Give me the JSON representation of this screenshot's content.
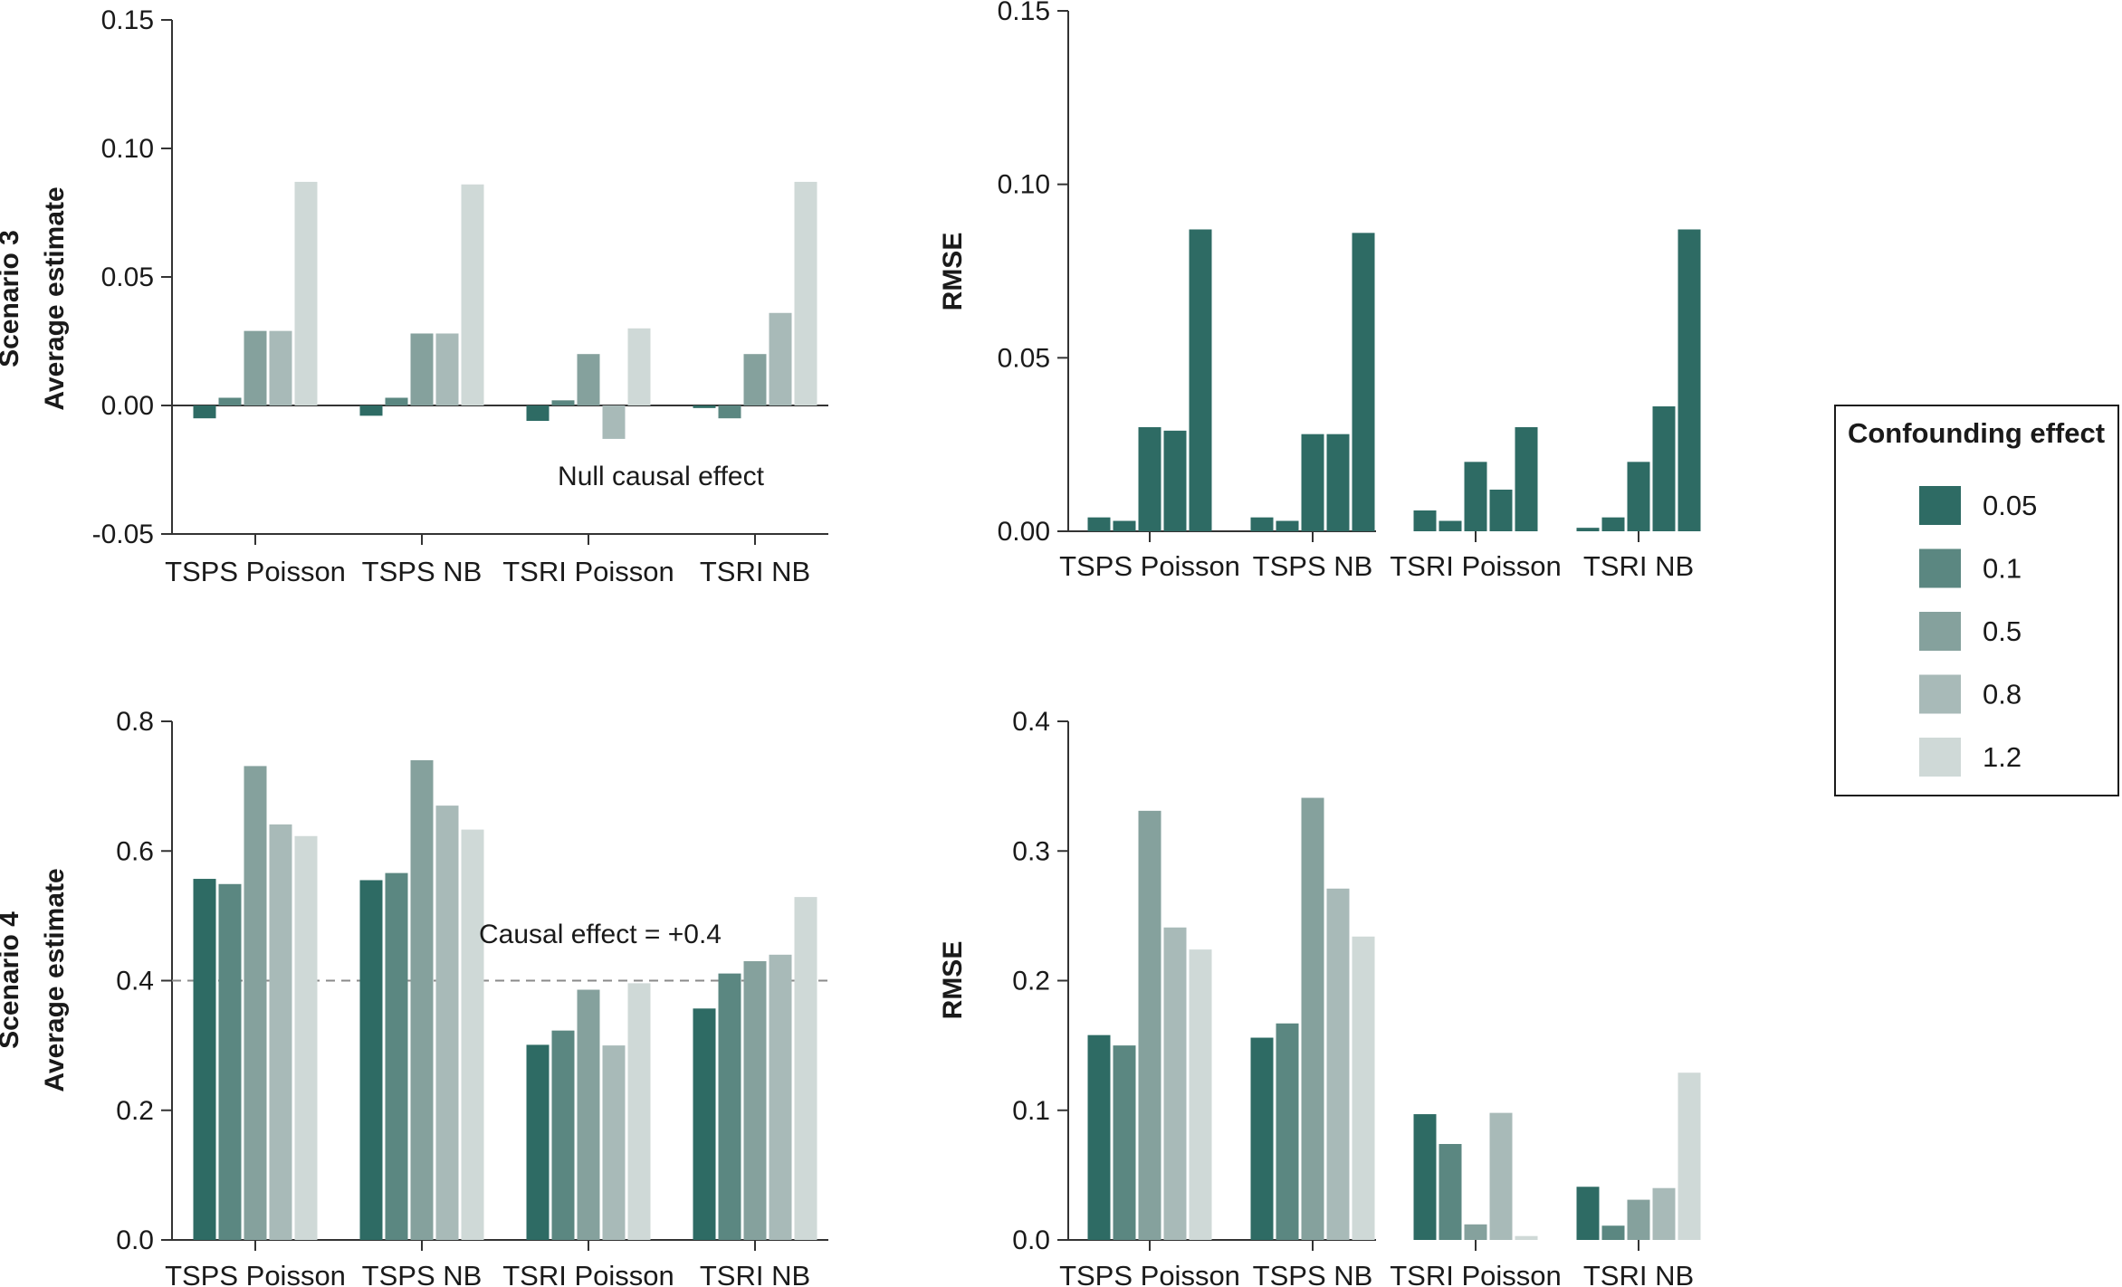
{
  "colors": {
    "0.05": "#2e6b64",
    "0.1": "#5b8781",
    "0.5": "#85a19d",
    "0.8": "#a8bab8",
    "1.2": "#cfd9d7",
    "rmse_bar": "#2e6b64",
    "axis": "#333333",
    "reference": "#8a8a8a"
  },
  "legend": {
    "title": "Confounding effect",
    "entries": [
      "0.05",
      "0.1",
      "0.5",
      "0.8",
      "1.2"
    ]
  },
  "row_titles": [
    "Scenario 3",
    "Scenario 4"
  ],
  "chart_data": [
    {
      "id": "s3-avg",
      "type": "bar",
      "ylabel": "Average estimate",
      "ylim": [
        -0.05,
        0.15
      ],
      "yticks": [
        -0.05,
        0.0,
        0.05,
        0.1,
        0.15
      ],
      "tick_labels": [
        "-0.05",
        "0.00",
        "0.05",
        "0.10",
        "0.15"
      ],
      "categories": [
        "TSPS Poisson",
        "TSPS NB",
        "TSRI Poisson",
        "TSRI NB"
      ],
      "series": [
        {
          "name": "0.05",
          "values": [
            -0.005,
            -0.004,
            -0.006,
            -0.001
          ]
        },
        {
          "name": "0.1",
          "values": [
            0.003,
            0.003,
            0.002,
            -0.005
          ]
        },
        {
          "name": "0.5",
          "values": [
            0.029,
            0.028,
            0.02,
            0.02
          ]
        },
        {
          "name": "0.8",
          "values": [
            0.029,
            0.028,
            -0.013,
            0.036
          ]
        },
        {
          "name": "1.2",
          "values": [
            0.087,
            0.086,
            0.03,
            0.087
          ]
        }
      ],
      "reference_line": {
        "y": 0.0,
        "style": "solid"
      },
      "annotation": "Null causal effect"
    },
    {
      "id": "s3-rmse",
      "type": "bar",
      "ylabel": "RMSE",
      "ylim": [
        0.0,
        0.15
      ],
      "yticks": [
        0.0,
        0.05,
        0.1,
        0.15
      ],
      "tick_labels": [
        "0.00",
        "0.05",
        "0.10",
        "0.15"
      ],
      "categories": [
        "TSPS Poisson",
        "TSPS NB",
        "TSRI Poisson",
        "TSRI NB"
      ],
      "series": [
        {
          "name": "0.05",
          "values": [
            0.004,
            0.004,
            0.006,
            0.001
          ]
        },
        {
          "name": "0.1",
          "values": [
            0.003,
            0.003,
            0.003,
            0.004
          ]
        },
        {
          "name": "0.5",
          "values": [
            0.03,
            0.028,
            0.02,
            0.02
          ]
        },
        {
          "name": "0.8",
          "values": [
            0.029,
            0.028,
            0.012,
            0.036
          ]
        },
        {
          "name": "1.2",
          "values": [
            0.087,
            0.086,
            0.03,
            0.087
          ]
        }
      ]
    },
    {
      "id": "s4-avg",
      "type": "bar",
      "ylabel": "Average estimate",
      "ylim": [
        0.0,
        0.8
      ],
      "yticks": [
        0.0,
        0.2,
        0.4,
        0.6,
        0.8
      ],
      "tick_labels": [
        "0.0",
        "0.2",
        "0.4",
        "0.6",
        "0.8"
      ],
      "categories": [
        "TSPS Poisson",
        "TSPS NB",
        "TSRI Poisson",
        "TSRI NB"
      ],
      "series": [
        {
          "name": "0.05",
          "values": [
            0.557,
            0.555,
            0.301,
            0.357
          ]
        },
        {
          "name": "0.1",
          "values": [
            0.549,
            0.566,
            0.323,
            0.411
          ]
        },
        {
          "name": "0.5",
          "values": [
            0.731,
            0.74,
            0.386,
            0.43
          ]
        },
        {
          "name": "0.8",
          "values": [
            0.641,
            0.67,
            0.3,
            0.44
          ]
        },
        {
          "name": "1.2",
          "values": [
            0.623,
            0.633,
            0.396,
            0.529
          ]
        }
      ],
      "reference_line": {
        "y": 0.4,
        "style": "dashed"
      },
      "annotation": "Causal effect = +0.4"
    },
    {
      "id": "s4-rmse",
      "type": "bar",
      "ylabel": "RMSE",
      "ylim": [
        0.0,
        0.4
      ],
      "yticks": [
        0.0,
        0.1,
        0.2,
        0.3,
        0.4
      ],
      "tick_labels": [
        "0.0",
        "0.1",
        "0.2",
        "0.3",
        "0.4"
      ],
      "categories": [
        "TSPS Poisson",
        "TSPS NB",
        "TSRI Poisson",
        "TSRI NB"
      ],
      "series": [
        {
          "name": "0.05",
          "values": [
            0.158,
            0.156,
            0.097,
            0.041
          ]
        },
        {
          "name": "0.1",
          "values": [
            0.15,
            0.167,
            0.074,
            0.011
          ]
        },
        {
          "name": "0.5",
          "values": [
            0.331,
            0.341,
            0.012,
            0.031
          ]
        },
        {
          "name": "0.8",
          "values": [
            0.241,
            0.271,
            0.098,
            0.04
          ]
        },
        {
          "name": "1.2",
          "values": [
            0.224,
            0.234,
            0.003,
            0.129
          ]
        }
      ]
    }
  ]
}
